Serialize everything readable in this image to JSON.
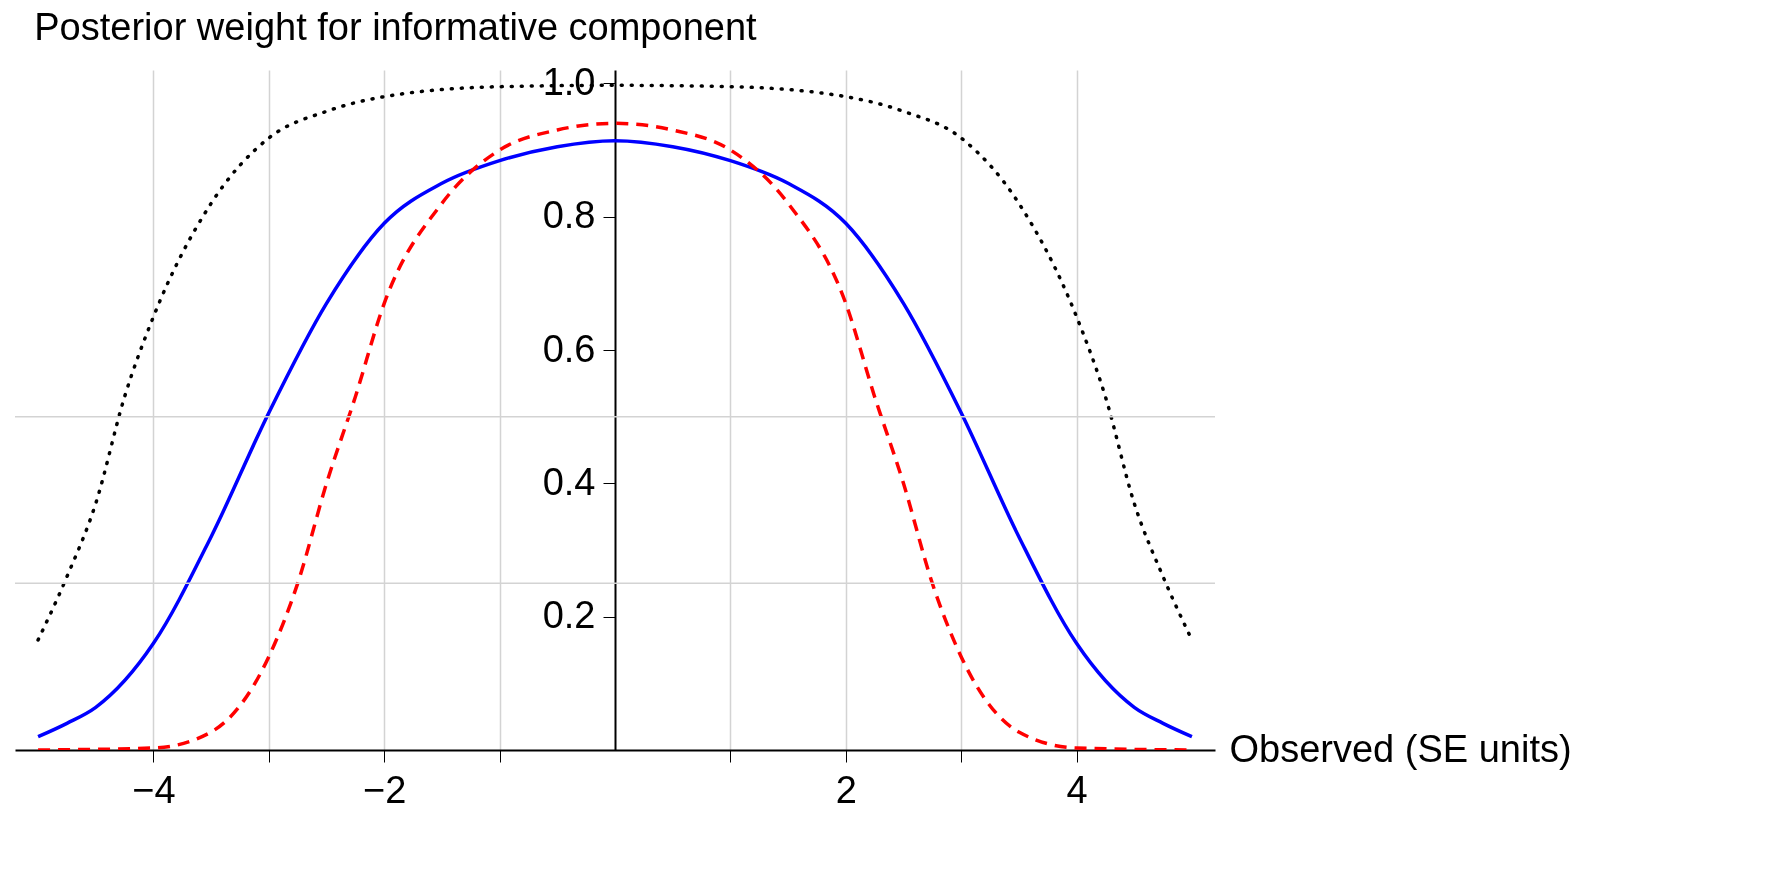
{
  "chart_data": {
    "type": "line",
    "title": "Posterior weight for informative component",
    "xlabel": "Observed (SE units)",
    "xlim": [
      -5.2,
      5.2
    ],
    "ylim": [
      0,
      1.02
    ],
    "xticks": [
      -4,
      {
        "value": -3,
        "label": null
      },
      -2,
      {
        "value": -1,
        "label": null
      },
      {
        "value": 1,
        "label": null
      },
      2,
      {
        "value": 3,
        "label": null
      },
      4
    ],
    "yticks": [
      0.2,
      0.4,
      0.6,
      0.8,
      {
        "value": 1,
        "label": "1.0"
      }
    ],
    "grid": "x",
    "ref_lines": [
      {
        "axis": "y",
        "value": 0.25,
        "label": null,
        "color": "#d3d3d3"
      },
      {
        "axis": "y",
        "value": 0.5,
        "label": null,
        "color": "#d3d3d3"
      }
    ],
    "series": [
      {
        "color": "#0000ff",
        "line_style": "solid",
        "x": [
          -5,
          -4.75,
          -4.5,
          -4,
          -3.5,
          -3,
          -2.5,
          -2,
          -1.5,
          -1,
          -0.5,
          0,
          0.5,
          1,
          1.5,
          2,
          2.5,
          3,
          3.5,
          4,
          4.5,
          4.75,
          5
        ],
        "values": [
          0.02,
          0.04,
          0.064,
          0.16,
          0.32,
          0.506,
          0.67,
          0.79,
          0.85,
          0.884,
          0.905,
          0.914,
          0.905,
          0.884,
          0.85,
          0.79,
          0.67,
          0.506,
          0.32,
          0.16,
          0.064,
          0.04,
          0.02
        ]
      },
      {
        "color": "#ff0000",
        "line_style": "dashed",
        "x": [
          -5,
          -4,
          -3.5,
          -3,
          -2.75,
          -2.5,
          -2.25,
          -2,
          -1.5,
          -1,
          -0.5,
          0,
          0.5,
          1,
          1.5,
          2,
          2.25,
          2.5,
          2.75,
          3,
          3.5,
          4,
          5
        ],
        "values": [
          0,
          0.003,
          0.027,
          0.14,
          0.25,
          0.4,
          0.53,
          0.67,
          0.82,
          0.9,
          0.93,
          0.94,
          0.93,
          0.9,
          0.82,
          0.67,
          0.53,
          0.4,
          0.25,
          0.14,
          0.027,
          0.003,
          0
        ]
      },
      {
        "color": "#000000",
        "line_style": "dotted",
        "x": [
          -5,
          -4.75,
          -4.5,
          -4.25,
          -4,
          -3.5,
          -3,
          -2.5,
          -2,
          -1,
          0,
          1,
          2,
          2.5,
          3,
          3.5,
          4,
          4.25,
          4.5,
          4.75,
          5
        ],
        "values": [
          0.165,
          0.26,
          0.37,
          0.53,
          0.65,
          0.82,
          0.918,
          0.958,
          0.98,
          0.995,
          0.997,
          0.995,
          0.98,
          0.958,
          0.918,
          0.82,
          0.65,
          0.53,
          0.37,
          0.26,
          0.165
        ]
      }
    ]
  }
}
